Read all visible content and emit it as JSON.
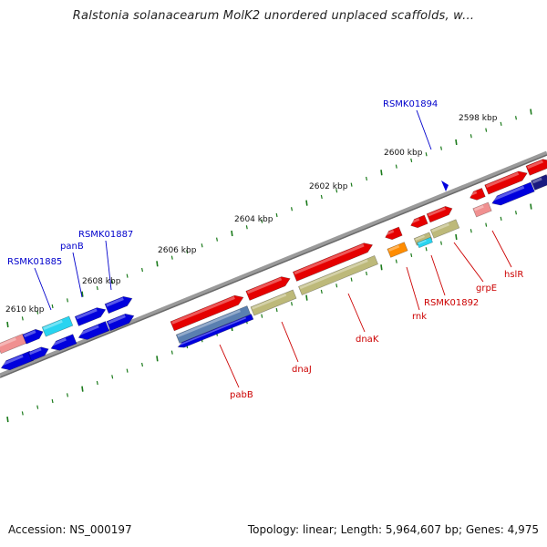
{
  "title": "Ralstonia solanacearum MolK2 unordered unplaced scaffolds, w...",
  "footer": {
    "accession": "Accession: NS_000197",
    "summary": "Topology: linear; Length: 5,964,607 bp; Genes: 4,975"
  },
  "colors": {
    "backbone": "#858585",
    "forward_gene": "#e50000",
    "reverse_gene": "#0000dd",
    "pale_red": "#f09090",
    "cyan": "#28d4f0",
    "khaki": "#bdb97a",
    "orange": "#ff8c00",
    "steel": "#5a7fb0",
    "navy": "#1a1a80",
    "tick": "#1a7a1a",
    "red_label": "#cc0000",
    "blue_label": "#0000cc"
  },
  "scale_labels": [
    "2598 kbp",
    "2600 kbp",
    "2602 kbp",
    "2604 kbp",
    "2606 kbp",
    "2608 kbp",
    "2610 kbp"
  ],
  "gene_labels": [
    {
      "text": "RSMK01894",
      "color": "blue"
    },
    {
      "text": "RSMK01887",
      "color": "blue"
    },
    {
      "text": "panB",
      "color": "blue"
    },
    {
      "text": "RSMK01885",
      "color": "blue"
    },
    {
      "text": "hslR",
      "color": "red"
    },
    {
      "text": "grpE",
      "color": "red"
    },
    {
      "text": "RSMK01892",
      "color": "red"
    },
    {
      "text": "rnk",
      "color": "red"
    },
    {
      "text": "dnaK",
      "color": "red"
    },
    {
      "text": "dnaJ",
      "color": "red"
    },
    {
      "text": "pabB",
      "color": "red"
    }
  ]
}
